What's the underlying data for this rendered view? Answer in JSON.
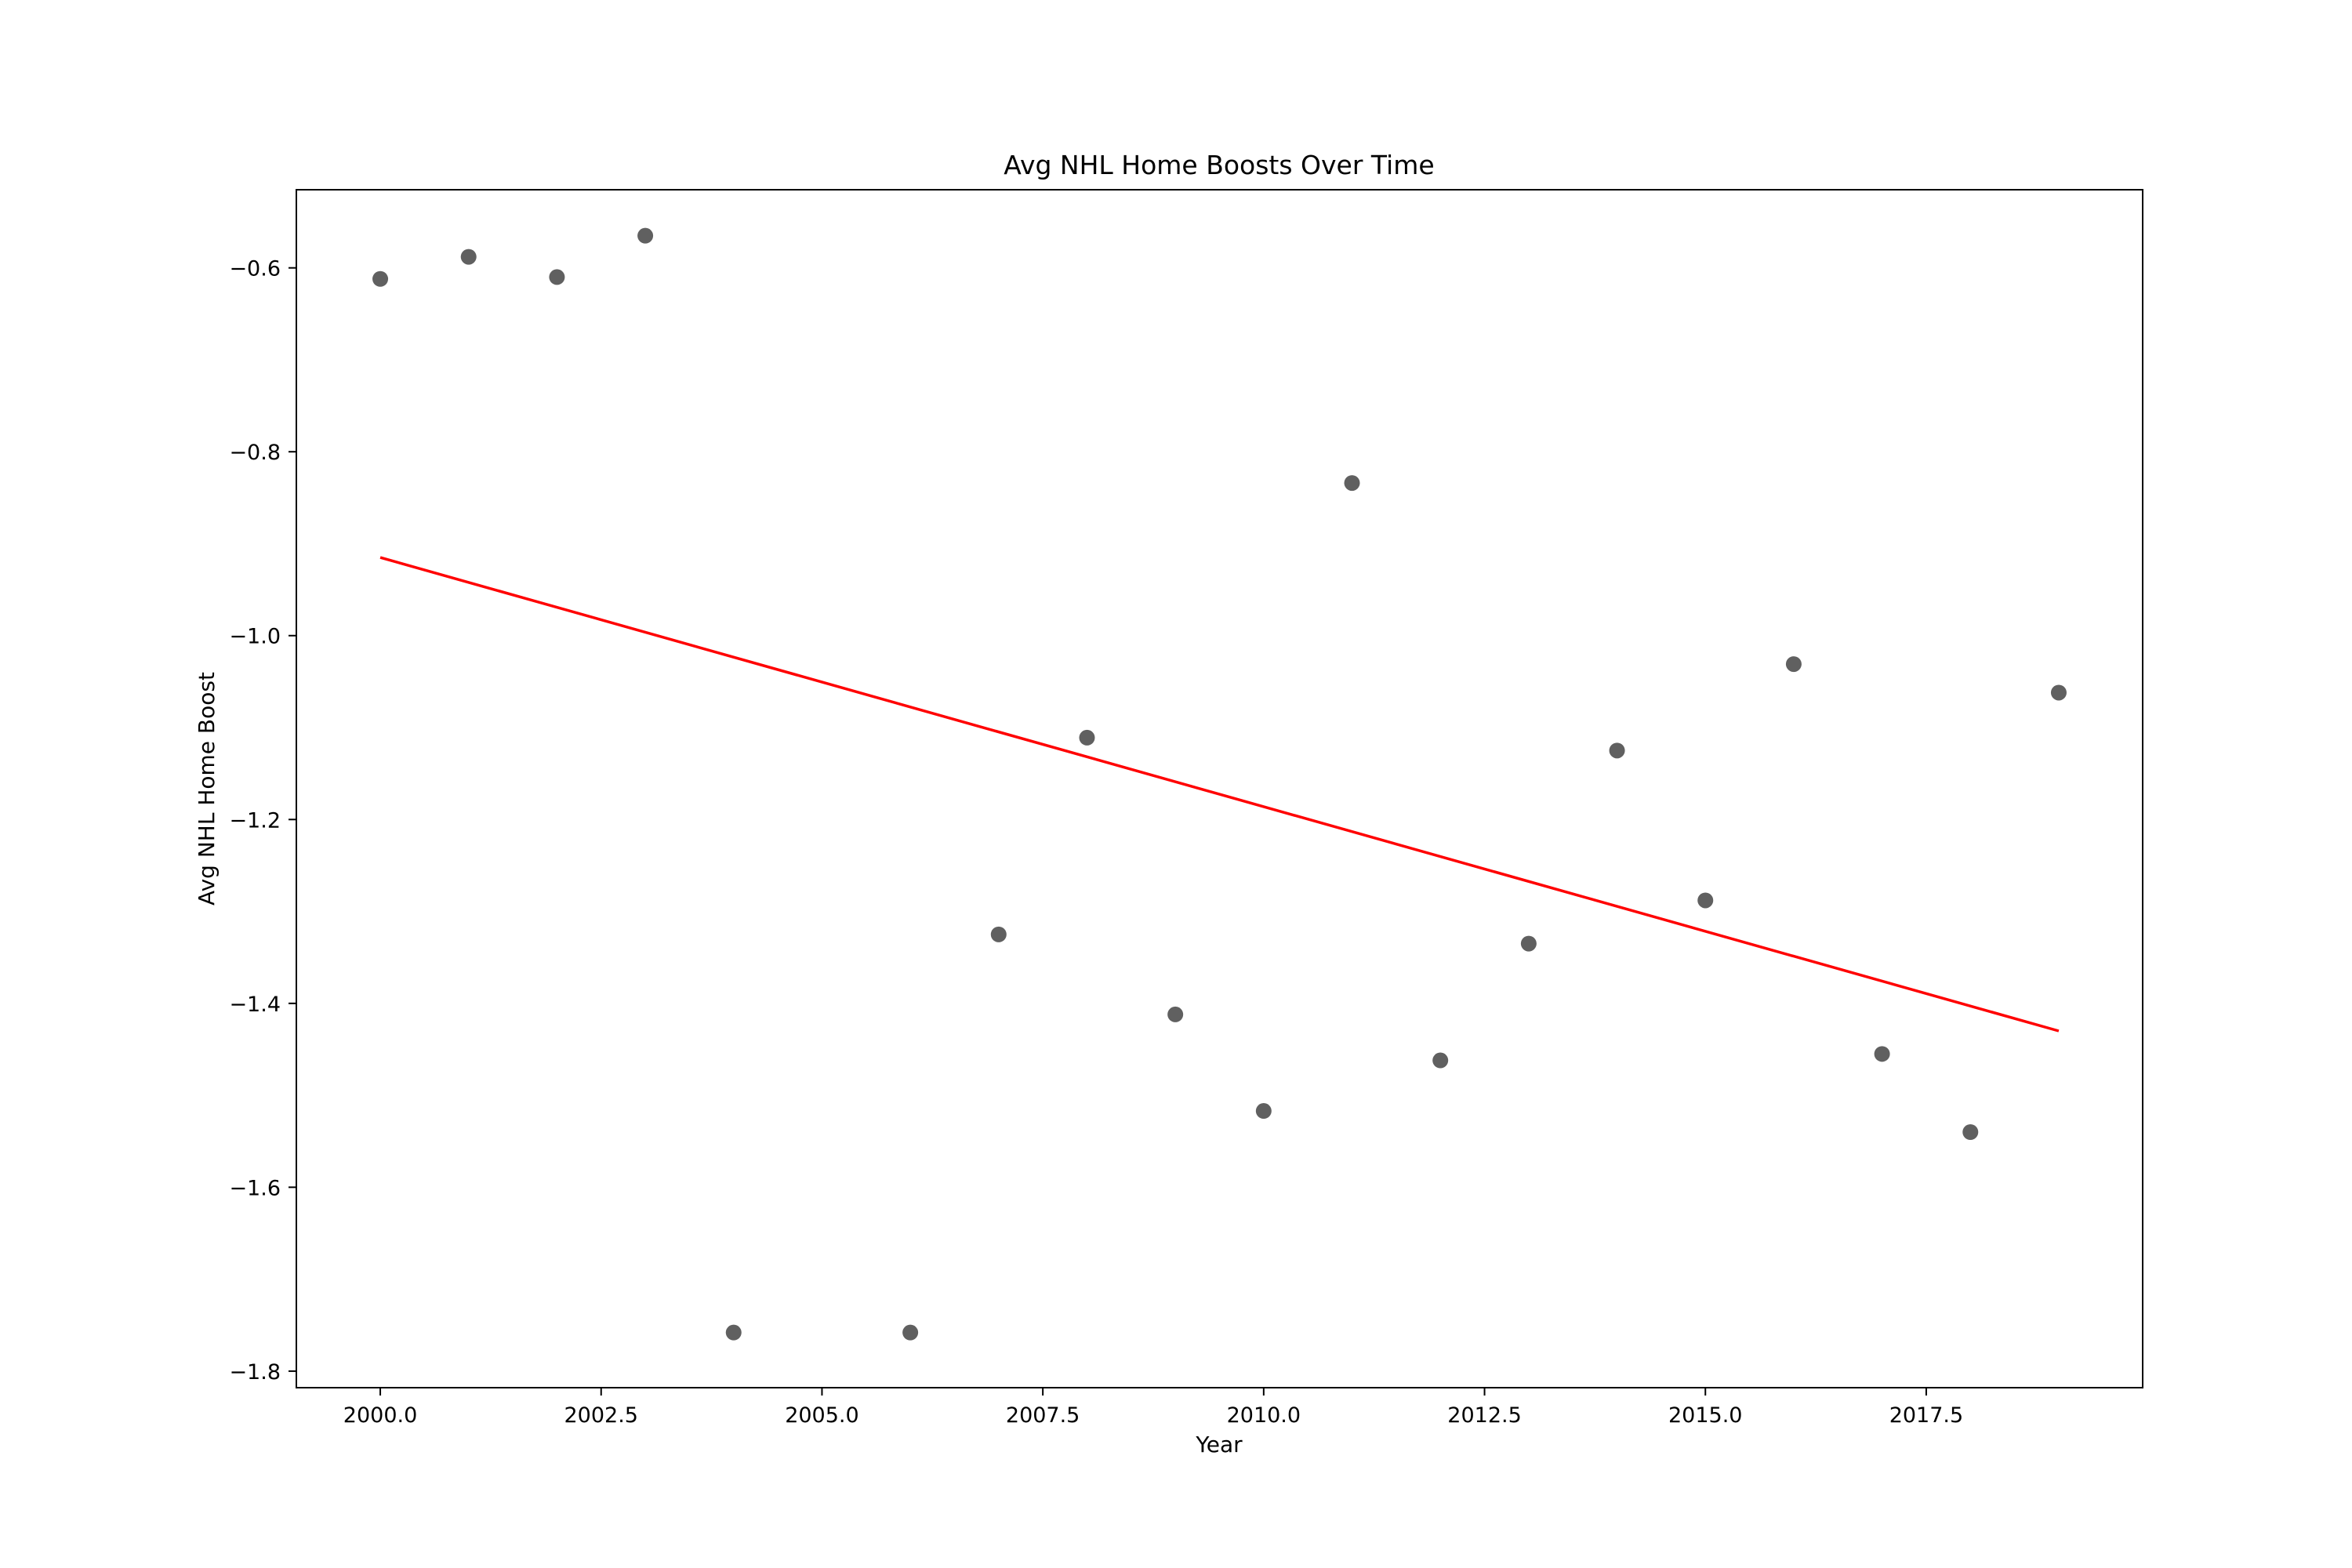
{
  "chart_data": {
    "type": "scatter",
    "title": "Avg NHL Home Boosts Over Time",
    "xlabel": "Year",
    "ylabel": "Avg NHL Home Boost",
    "xlim": [
      1999.05,
      2019.95
    ],
    "ylim": [
      -1.818,
      -0.515
    ],
    "xticks": [
      2000.0,
      2002.5,
      2005.0,
      2007.5,
      2010.0,
      2012.5,
      2015.0,
      2017.5
    ],
    "xtick_labels": [
      "2000.0",
      "2002.5",
      "2005.0",
      "2007.5",
      "2010.0",
      "2012.5",
      "2015.0",
      "2017.5"
    ],
    "yticks": [
      -0.6,
      -0.8,
      -1.0,
      -1.2,
      -1.4,
      -1.6,
      -1.8
    ],
    "ytick_labels": [
      "−0.6",
      "−0.8",
      "−1.0",
      "−1.2",
      "−1.4",
      "−1.6",
      "−1.8"
    ],
    "grid": false,
    "points": {
      "x": [
        2000,
        2001,
        2002,
        2003,
        2004,
        2006,
        2007,
        2008,
        2009,
        2010,
        2011,
        2012,
        2013,
        2014,
        2015,
        2016,
        2017,
        2018,
        2019
      ],
      "y": [
        -0.612,
        -0.588,
        -0.61,
        -0.565,
        -1.758,
        -1.758,
        -1.325,
        -1.111,
        -1.412,
        -1.517,
        -0.834,
        -1.462,
        -1.335,
        -1.125,
        -1.288,
        -1.031,
        -1.455,
        -1.54,
        -1.062
      ],
      "color": "#606060"
    },
    "trend_line": {
      "x": [
        2000,
        2019
      ],
      "y": [
        -0.915,
        -1.43
      ],
      "color": "#ff0000"
    }
  }
}
